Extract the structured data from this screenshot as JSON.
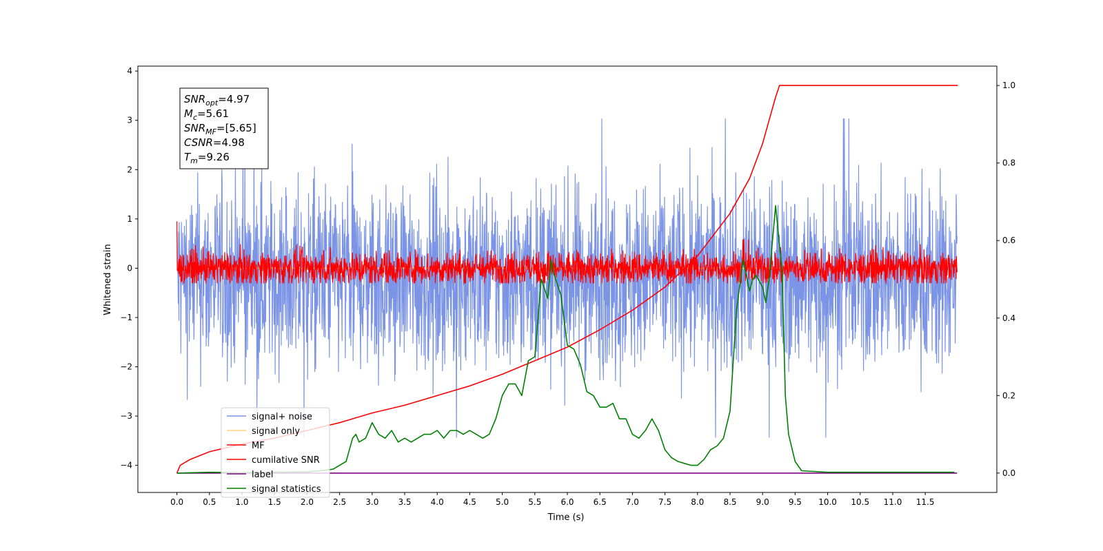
{
  "chart_data": {
    "type": "line",
    "xlabel": "Time (s)",
    "ylabel": "Whitened strain",
    "xlim": [
      -0.6,
      12.6
    ],
    "ylim_left": [
      -4.55,
      4.1
    ],
    "ylim_right": [
      -0.05,
      1.05
    ],
    "xticks": [
      0.0,
      0.5,
      1.0,
      1.5,
      2.0,
      2.5,
      3.0,
      3.5,
      4.0,
      4.5,
      5.0,
      5.5,
      6.0,
      6.5,
      7.0,
      7.5,
      8.0,
      8.5,
      9.0,
      9.5,
      10.0,
      10.5,
      11.0,
      11.5
    ],
    "xtick_labels": [
      "0.0",
      "0.5",
      "1.0",
      "1.5",
      "2.0",
      "2.5",
      "3.0",
      "3.5",
      "4.0",
      "4.5",
      "5.0",
      "5.5",
      "6.0",
      "6.5",
      "7.0",
      "7.5",
      "8.0",
      "8.5",
      "9.0",
      "9.5",
      "10.0",
      "10.5",
      "11.0",
      "11.5"
    ],
    "yticks_left": [
      4,
      3,
      2,
      1,
      0,
      -1,
      -2,
      -3,
      -4
    ],
    "ytick_labels_left": [
      "4",
      "3",
      "2",
      "1",
      "0",
      "−1",
      "−2",
      "−3",
      "−4"
    ],
    "yticks_right": [
      1.0,
      0.8,
      0.6,
      0.4,
      0.2,
      0.0
    ],
    "ytick_labels_right": [
      "1.0",
      "0.8",
      "0.6",
      "0.4",
      "0.2",
      "0.0"
    ],
    "grid": false,
    "legend_placement": "lower-left",
    "annotation": {
      "lines": [
        {
          "base": "SNR",
          "sub": "opt",
          "rest": "=4.97"
        },
        {
          "base": "M",
          "sub": "c",
          "rest": "=5.61"
        },
        {
          "base": "SNR",
          "sub": "MF",
          "rest": "=[5.65]"
        },
        {
          "base": "CSNR",
          "sub": "",
          "rest": "=4.98"
        },
        {
          "base": "T",
          "sub": "m",
          "rest": "=9.26"
        }
      ]
    },
    "series": [
      {
        "name": "signal+ noise",
        "axis": "left",
        "color": "#7b94e6",
        "kind": "noise",
        "x_range": [
          0.0,
          11.99
        ],
        "center": -0.2,
        "spread": 0.95,
        "extreme": [
          -3.7,
          3.7
        ]
      },
      {
        "name": "signal only",
        "axis": "left",
        "color": "#ffd27f",
        "x": [
          0.0,
          9.26
        ],
        "y": [
          0.0,
          0.0
        ]
      },
      {
        "name": "MF",
        "axis": "left",
        "color": "#ff0000",
        "kind": "noise",
        "x_range": [
          0.0,
          11.99
        ],
        "center": 0.0,
        "spread": 0.17,
        "extreme": [
          -0.3,
          0.95
        ]
      },
      {
        "name": "cumilative SNR",
        "axis": "right",
        "color": "#ff0000",
        "x": [
          0.0,
          0.05,
          0.2,
          0.5,
          1.0,
          1.5,
          2.0,
          2.5,
          3.0,
          3.5,
          4.0,
          4.5,
          5.0,
          5.5,
          6.0,
          6.5,
          7.0,
          7.5,
          8.0,
          8.5,
          8.8,
          9.0,
          9.1,
          9.2,
          9.26,
          9.5,
          10.0,
          11.0,
          12.0
        ],
        "y": [
          0.0,
          0.02,
          0.035,
          0.055,
          0.075,
          0.09,
          0.11,
          0.13,
          0.155,
          0.175,
          0.2,
          0.225,
          0.255,
          0.29,
          0.325,
          0.37,
          0.42,
          0.48,
          0.56,
          0.67,
          0.76,
          0.85,
          0.91,
          0.97,
          1.0,
          1.0,
          1.0,
          1.0,
          1.0
        ]
      },
      {
        "name": "label",
        "axis": "right",
        "color": "#800080",
        "x": [
          0.0,
          11.99
        ],
        "y": [
          0.0,
          0.0
        ]
      },
      {
        "name": "signal statistics",
        "axis": "right",
        "color": "#008000",
        "x": [
          0.0,
          0.5,
          1.0,
          1.5,
          2.0,
          2.2,
          2.4,
          2.5,
          2.6,
          2.7,
          2.75,
          2.8,
          2.9,
          3.0,
          3.1,
          3.2,
          3.3,
          3.4,
          3.5,
          3.6,
          3.7,
          3.8,
          3.9,
          4.0,
          4.1,
          4.2,
          4.3,
          4.4,
          4.5,
          4.6,
          4.7,
          4.8,
          4.9,
          5.0,
          5.1,
          5.2,
          5.3,
          5.4,
          5.5,
          5.6,
          5.7,
          5.75,
          5.8,
          5.9,
          6.0,
          6.1,
          6.2,
          6.3,
          6.4,
          6.5,
          6.6,
          6.7,
          6.8,
          6.9,
          7.0,
          7.1,
          7.2,
          7.3,
          7.4,
          7.5,
          7.6,
          7.7,
          7.8,
          7.9,
          8.0,
          8.1,
          8.2,
          8.3,
          8.4,
          8.5,
          8.6,
          8.7,
          8.75,
          8.8,
          8.85,
          8.9,
          9.0,
          9.05,
          9.1,
          9.2,
          9.3,
          9.35,
          9.4,
          9.5,
          9.6,
          10.0,
          11.0,
          11.95
        ],
        "y": [
          0.0,
          0.002,
          0.001,
          0.002,
          0.003,
          0.006,
          0.01,
          0.02,
          0.03,
          0.09,
          0.1,
          0.08,
          0.09,
          0.13,
          0.1,
          0.09,
          0.11,
          0.08,
          0.09,
          0.08,
          0.09,
          0.1,
          0.1,
          0.11,
          0.09,
          0.11,
          0.11,
          0.1,
          0.11,
          0.1,
          0.09,
          0.1,
          0.14,
          0.2,
          0.23,
          0.23,
          0.2,
          0.29,
          0.3,
          0.5,
          0.45,
          0.55,
          0.51,
          0.46,
          0.33,
          0.32,
          0.28,
          0.21,
          0.2,
          0.17,
          0.17,
          0.18,
          0.14,
          0.14,
          0.1,
          0.09,
          0.11,
          0.14,
          0.11,
          0.06,
          0.04,
          0.03,
          0.025,
          0.02,
          0.02,
          0.035,
          0.06,
          0.07,
          0.09,
          0.16,
          0.42,
          0.55,
          0.51,
          0.47,
          0.5,
          0.51,
          0.48,
          0.44,
          0.5,
          0.69,
          0.52,
          0.2,
          0.1,
          0.03,
          0.006,
          0.002,
          0.002,
          0.002
        ]
      }
    ]
  }
}
